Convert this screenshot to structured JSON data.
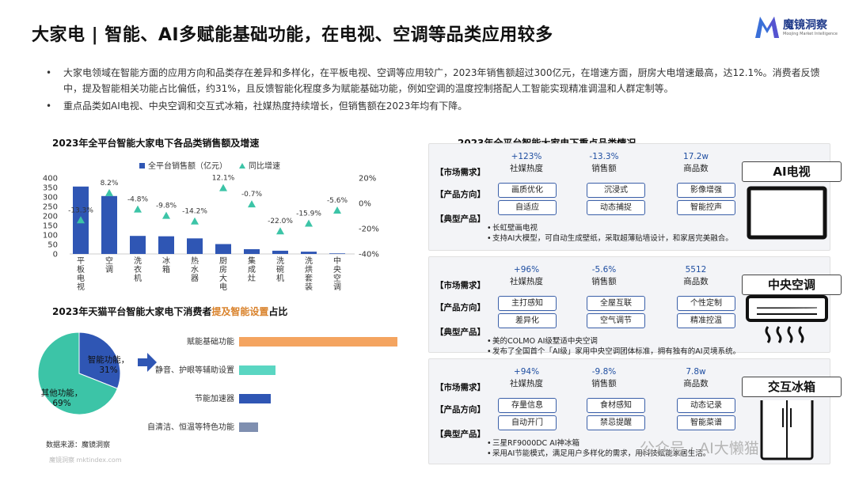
{
  "title": "大家电 | 智能、AI多赋能基础功能，在电视、空调等品类应用较多",
  "logo": {
    "cn": "魔镜洞察",
    "en": "Moojing Market Intelligence"
  },
  "bullets": [
    "大家电领域在智能方面的应用方向和品类存在差异和多样化，在平板电视、空调等应用较广，2023年销售额超过300亿元，在增速方面，厨房大电增速最高，达12.1%。消费者反馈中，提及智能相关功能占比偏低，约31%，且反馈智能化程度多为赋能基础功能，例如空调的温度控制搭配人工智能实现精准调温和人群定制等。",
    "重点品类如AI电视、中央空调和交互式冰箱，社媒热度持续增长，但销售额在2023年均有下降。"
  ],
  "bullet_mark": "•",
  "chart1": {
    "title": "2023年全平台智能大家电下各品类销售额及增速",
    "chart_data": {
      "type": "bar",
      "categories": [
        "平板电视",
        "空调",
        "洗衣机",
        "冰箱",
        "热水器",
        "厨房大电",
        "集成灶",
        "洗碗机",
        "洗烘套装",
        "中央空调"
      ],
      "series": [
        {
          "name": "全平台销售额（亿元）",
          "values": [
            355,
            305,
            95,
            93,
            82,
            52,
            25,
            17,
            12,
            3
          ],
          "color": "#2f56b4"
        },
        {
          "name": "同比增速",
          "values": [
            -13.3,
            8.2,
            -4.8,
            -9.8,
            -14.2,
            12.1,
            -0.7,
            -22.0,
            -15.9,
            -5.6
          ],
          "color": "#3cc4a7"
        }
      ],
      "growth_labels": [
        "-13.3%",
        "8.2%",
        "-4.8%",
        "-9.8%",
        "-14.2%",
        "12.1%",
        "-0.7%",
        "-22.0%",
        "-15.9%",
        "-5.6%"
      ],
      "yticks_left": [
        "400",
        "350",
        "300",
        "250",
        "200",
        "150",
        "100",
        "50",
        "0"
      ],
      "yticks_right": [
        "20%",
        "0%",
        "-20%",
        "-40%"
      ],
      "ylim_left": [
        0,
        400
      ],
      "ylim_right": [
        -40,
        20
      ]
    }
  },
  "chart2": {
    "title_prefix": "2023年天猫平台智能大家电下消费者",
    "title_highlight": "提及智能设置",
    "title_suffix": "占比",
    "pie": {
      "type": "pie",
      "slices": [
        {
          "label": "智能功能，31%",
          "value": 31,
          "color": "#2f56b4"
        },
        {
          "label": "其他功能，69%",
          "value": 69,
          "color": "#3cc4a7"
        }
      ]
    },
    "hbar": {
      "type": "bar",
      "orientation": "horizontal",
      "categories": [
        "赋能基础功能",
        "静音、护眼等辅助设置",
        "节能加速器",
        "自清洁、恒温等特色功能"
      ],
      "values": [
        100,
        23,
        20,
        12
      ],
      "colors": [
        "#f4a460",
        "#5ad6c2",
        "#2f56b4",
        "#7f8fb0"
      ]
    }
  },
  "right_title": "2023年全平台智能大家电下重点品类情况",
  "row_labels": {
    "demand": "【市场需求】",
    "direction": "【产品方向】",
    "product": "【典型产品】"
  },
  "metric_labels": [
    "社媒热度",
    "销售额",
    "商品数"
  ],
  "categories": [
    {
      "name": "AI电视",
      "metrics": [
        "+123%",
        "-13.3%",
        "17.2w"
      ],
      "tags": [
        "画质优化",
        "沉浸式",
        "影像增强",
        "自适应",
        "动态捕捉",
        "智能控声"
      ],
      "products": [
        "长虹壁画电视",
        "支持AI大模型，可自动生成壁纸，采取超薄贴墙设计，和家居完美融合。"
      ]
    },
    {
      "name": "中央空调",
      "metrics": [
        "+96%",
        "-5.6%",
        "5512"
      ],
      "tags": [
        "主打感知",
        "全屋互联",
        "个性定制",
        "差异化",
        "空气调节",
        "精准控温"
      ],
      "products": [
        "美的COLMO AI级墅适中央空调",
        "发布了全国首个「AI级」家用中央空调团体标准，拥有独有的AI灵境系统。"
      ]
    },
    {
      "name": "交互冰箱",
      "metrics": [
        "+94%",
        "-9.8%",
        "7.8w"
      ],
      "tags": [
        "存量信息",
        "食材感知",
        "动态记录",
        "自动开门",
        "禁忌提醒",
        "智能菜谱"
      ],
      "products": [
        "三星RF9000DC AI神冰箱",
        "采用AI节能模式，满足用户多样化的需求，用科技赋能家居生活。"
      ]
    }
  ],
  "source": "数据来源：魔镜洞察",
  "watermark": "魔镜洞察 mktindex.com",
  "wechat": "公众号 · AI大懒猫"
}
